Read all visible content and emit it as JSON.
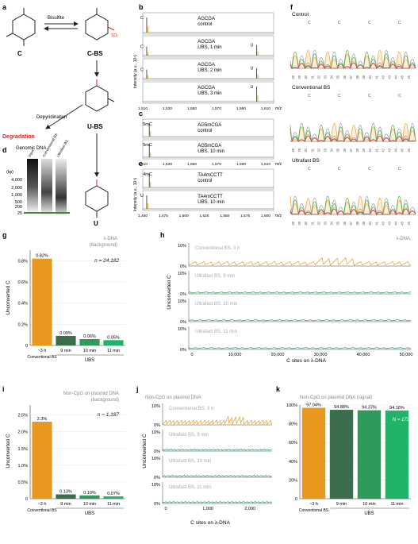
{
  "panels": {
    "a": {
      "letter": "a",
      "reagent": "Bisulfite",
      "labels": [
        "C",
        "C-BS",
        "U-BS",
        "U"
      ],
      "depyr": "Depyridination",
      "degradation": "Degradation",
      "so3": "SO₃⁻"
    },
    "b": {
      "letter": "b",
      "traces": [
        {
          "seq": "AGCGA",
          "cond": "control"
        },
        {
          "seq": "AGCGA",
          "cond": "UBS, 1 min"
        },
        {
          "seq": "AGCGA",
          "cond": "UBS, 2 min"
        },
        {
          "seq": "AGCGA",
          "cond": "UBS, 3 min"
        }
      ],
      "ylabel": "Intensity (a.u., 10⁴)",
      "ticks": [
        "1,510",
        "1,530",
        "1,550",
        "1,570",
        "1,590",
        "1,610"
      ],
      "unit": "m/z",
      "peakC": "C",
      "peakU": "U"
    },
    "c": {
      "letter": "c",
      "traces": [
        {
          "seq": "AG5mCGA",
          "cond": "control"
        },
        {
          "seq": "AG5mCGA",
          "cond": "UBS, 10 min"
        }
      ],
      "peak": "5mC",
      "ticks": [
        "1,510",
        "1,530",
        "1,550",
        "1,570",
        "1,590",
        "1,610"
      ],
      "unit": "m/z"
    },
    "d": {
      "letter": "d",
      "title": "Genomic DNA",
      "lanes": [
        "Input",
        "Conventional BS",
        "Ultrafast BS"
      ],
      "unit": "(bp)",
      "ladder": [
        "4,000",
        "2,000",
        "1,000",
        "500",
        "200",
        "25"
      ]
    },
    "e": {
      "letter": "e",
      "traces": [
        {
          "seq": "TA4mCCTT",
          "cond": "control"
        },
        {
          "seq": "TA4mCCTT",
          "cond": "UBS, 10 min"
        }
      ],
      "peak1": "4mC",
      "peak2": "U",
      "ylabel": "Intensity (a.u., 10⁴)",
      "ticks": [
        "1,450",
        "1,475",
        "1,500",
        "1,525",
        "1,550",
        "1,575",
        "1,600"
      ],
      "unit": "m/z"
    },
    "f": {
      "letter": "f",
      "tracks": [
        "Control",
        "Conventional BS",
        "Ultrafast BS"
      ],
      "base": "C",
      "positions": [
        "28",
        "29",
        "30",
        "31",
        "32",
        "33",
        "34",
        "35",
        "36",
        "37",
        "38",
        "39",
        "40",
        "41",
        "42",
        "43",
        "44",
        "45",
        "46"
      ]
    }
  },
  "chart_g": {
    "letter": "g",
    "title": "λ-DNA",
    "subtitle": "(background)",
    "nlabel": "n = 24,182",
    "ylabel": "Unconverted C",
    "ubs": "UBS",
    "chart_data": {
      "type": "bar",
      "categories": [
        "~3 h",
        "9 min",
        "10 min",
        "11 min"
      ],
      "values": [
        0.82,
        0.09,
        0.06,
        0.05
      ],
      "value_labels": [
        "0.82%",
        "0.09%",
        "0.06%",
        "0.05%"
      ],
      "ylim": [
        0,
        0.9
      ],
      "yticks": [
        "0",
        "0.2%",
        "0.4%",
        "0.6%",
        "0.8%"
      ],
      "ytick_values": [
        0,
        0.2,
        0.4,
        0.6,
        0.8
      ],
      "group_label": "Conventional BS",
      "colors": [
        "#e8971f",
        "#3c6e4e",
        "#2e9a5c",
        "#22b36a"
      ]
    }
  },
  "chart_h": {
    "letter": "h",
    "title": "λ-DNA",
    "ylabel": "Unconverted C",
    "xlabel": "C sites on λ-DNA",
    "tracks": [
      "Conventional BS, 3 h",
      "Ultrafast BS, 9 min",
      "Ultrafast BS, 10 min",
      "Ultrafast BS, 11 min"
    ],
    "yticks": [
      "10%",
      "0%"
    ],
    "xticks": [
      "0",
      "10,000",
      "20,000",
      "30,000",
      "40,000",
      "50,000"
    ],
    "xlim": [
      0,
      50000
    ]
  },
  "chart_i": {
    "letter": "i",
    "title": "Non-CpG on plasmid DNA",
    "subtitle": "(background)",
    "nlabel": "n = 1,187",
    "ylabel": "Unconverted C",
    "ubs": "UBS",
    "chart_data": {
      "type": "bar",
      "categories": [
        "~3 h",
        "9 min",
        "10 min",
        "11 min"
      ],
      "values": [
        2.3,
        0.13,
        0.1,
        0.07
      ],
      "value_labels": [
        "2.3%",
        "0.13%",
        "0.10%",
        "0.07%"
      ],
      "ylim": [
        0,
        2.8
      ],
      "yticks": [
        "0",
        "0.5%",
        "1.0%",
        "1.5%",
        "2.0%",
        "2.5%"
      ],
      "ytick_values": [
        0,
        0.5,
        1,
        1.5,
        2,
        2.5
      ],
      "group_label": "Conventional BS",
      "colors": [
        "#e8971f",
        "#3c6e4e",
        "#2e9a5c",
        "#22b36a"
      ]
    }
  },
  "chart_j": {
    "letter": "j",
    "title": "Non-CpG on plasmid DNA",
    "ylabel": "Unconverted C",
    "xlabel": "C sites on λ-DNA",
    "tracks": [
      "Conventional BS, 3 h",
      "Ultrafast BS, 9 min",
      "Ultrafast BS, 10 min",
      "Ultrafast BS, 11 min"
    ],
    "yticks": [
      "10%",
      "0%"
    ],
    "xticks": [
      "0",
      "1,000",
      "2,000"
    ],
    "xlim": [
      0,
      2400
    ]
  },
  "chart_k": {
    "letter": "k",
    "title": "Non-CpG on plasmid DNA (signal)",
    "nlabel": "N = 173",
    "ubs": "UBS",
    "chart_data": {
      "type": "bar",
      "categories": [
        "~3 h",
        "9 min",
        "10 min",
        "11 min"
      ],
      "values": [
        97.04,
        94.88,
        94.37,
        94.16
      ],
      "value_labels": [
        "97.04%",
        "94.88%",
        "94.37%",
        "94.16%"
      ],
      "ylim": [
        0,
        100
      ],
      "yticks": [
        "0",
        "20%",
        "40%",
        "60%",
        "80%",
        "100%"
      ],
      "ytick_values": [
        0,
        20,
        40,
        60,
        80,
        100
      ],
      "group_label": "Conventional BS",
      "colors": [
        "#e8971f",
        "#3c6e4e",
        "#2e9a5c",
        "#22b36a"
      ]
    }
  }
}
